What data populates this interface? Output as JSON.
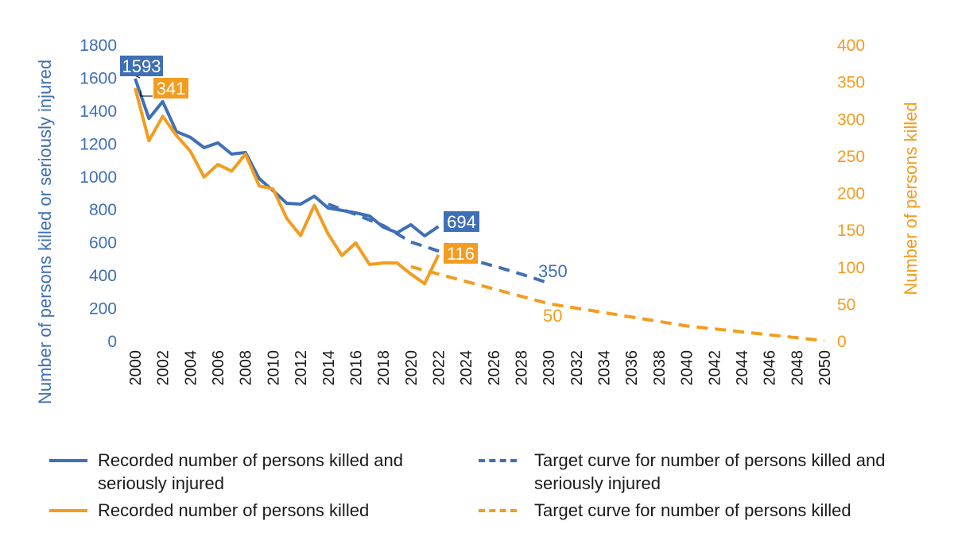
{
  "chart_data": {
    "type": "line",
    "title": "",
    "xlabel": "",
    "ylabel": "Number of persons killed or seriously injured",
    "y2label": "Number of persons killed",
    "xlim": [
      2000,
      2050
    ],
    "ylim": [
      0,
      1800
    ],
    "y2lim": [
      0,
      400
    ],
    "grid": false,
    "legend_position": "bottom",
    "x_ticks": [
      "2000",
      "2002",
      "2004",
      "2006",
      "2008",
      "2010",
      "2012",
      "2014",
      "2016",
      "2018",
      "2020",
      "2022",
      "2024",
      "2026",
      "2028",
      "2030",
      "2032",
      "2034",
      "2036",
      "2038",
      "2040",
      "2042",
      "2044",
      "2046",
      "2048",
      "2050"
    ],
    "y_ticks": [
      "0",
      "200",
      "400",
      "600",
      "800",
      "1000",
      "1200",
      "1400",
      "1600",
      "1800"
    ],
    "y2_ticks": [
      "0",
      "50",
      "100",
      "150",
      "200",
      "250",
      "300",
      "350",
      "400"
    ],
    "colors": {
      "blue": "#3f6fb6",
      "orange": "#f39c1f"
    },
    "series": [
      {
        "name": "Recorded number of persons killed and seriously injured",
        "axis": "left",
        "style": "solid",
        "color": "#3f6fb6",
        "x": [
          2000,
          2001,
          2002,
          2003,
          2004,
          2005,
          2006,
          2007,
          2008,
          2009,
          2010,
          2011,
          2012,
          2013,
          2014,
          2015,
          2016,
          2017,
          2018,
          2019,
          2020,
          2021,
          2022
        ],
        "y": [
          1593,
          1350,
          1453,
          1270,
          1236,
          1173,
          1202,
          1134,
          1144,
          985,
          912,
          835,
          830,
          878,
          806,
          792,
          777,
          758,
          690,
          656,
          705,
          637,
          694
        ]
      },
      {
        "name": "Target curve for number of persons killed and seriously injured",
        "axis": "left",
        "style": "dashed",
        "color": "#3f6fb6",
        "x": [
          2014,
          2016,
          2018,
          2020,
          2022,
          2024,
          2026,
          2028,
          2030
        ],
        "y": [
          830,
          767,
          700,
          600,
          545,
          500,
          455,
          405,
          350
        ]
      },
      {
        "name": "Recorded number of persons killed",
        "axis": "right",
        "style": "solid",
        "color": "#f39c1f",
        "x": [
          2000,
          2001,
          2002,
          2003,
          2004,
          2005,
          2006,
          2007,
          2008,
          2009,
          2010,
          2011,
          2012,
          2013,
          2014,
          2015,
          2016,
          2017,
          2018,
          2019,
          2020,
          2021,
          2022
        ],
        "y": [
          341,
          270,
          303,
          277,
          256,
          221,
          238,
          229,
          252,
          209,
          205,
          165,
          142,
          183,
          144,
          115,
          132,
          103,
          105,
          105,
          90,
          77,
          116
        ]
      },
      {
        "name": "Target curve for number of persons killed",
        "axis": "right",
        "style": "dashed",
        "color": "#f39c1f",
        "x": [
          2020,
          2022,
          2024,
          2026,
          2028,
          2030,
          2032,
          2034,
          2036,
          2038,
          2040,
          2042,
          2044,
          2046,
          2048,
          2050
        ],
        "y": [
          100,
          90,
          80,
          70,
          60,
          50,
          44,
          38,
          32,
          26,
          20,
          16,
          12,
          8,
          4,
          0
        ]
      }
    ],
    "annotations": {
      "blue_start": "1593",
      "orange_start": "341",
      "blue_end": "694",
      "orange_end": "116",
      "blue_target": "350",
      "orange_target": "50"
    }
  },
  "legend": [
    "Recorded number of persons killed and seriously injured",
    "Target curve for number of persons killed and seriously injured",
    "Recorded number of persons killed",
    "Target curve for number of persons killed"
  ]
}
